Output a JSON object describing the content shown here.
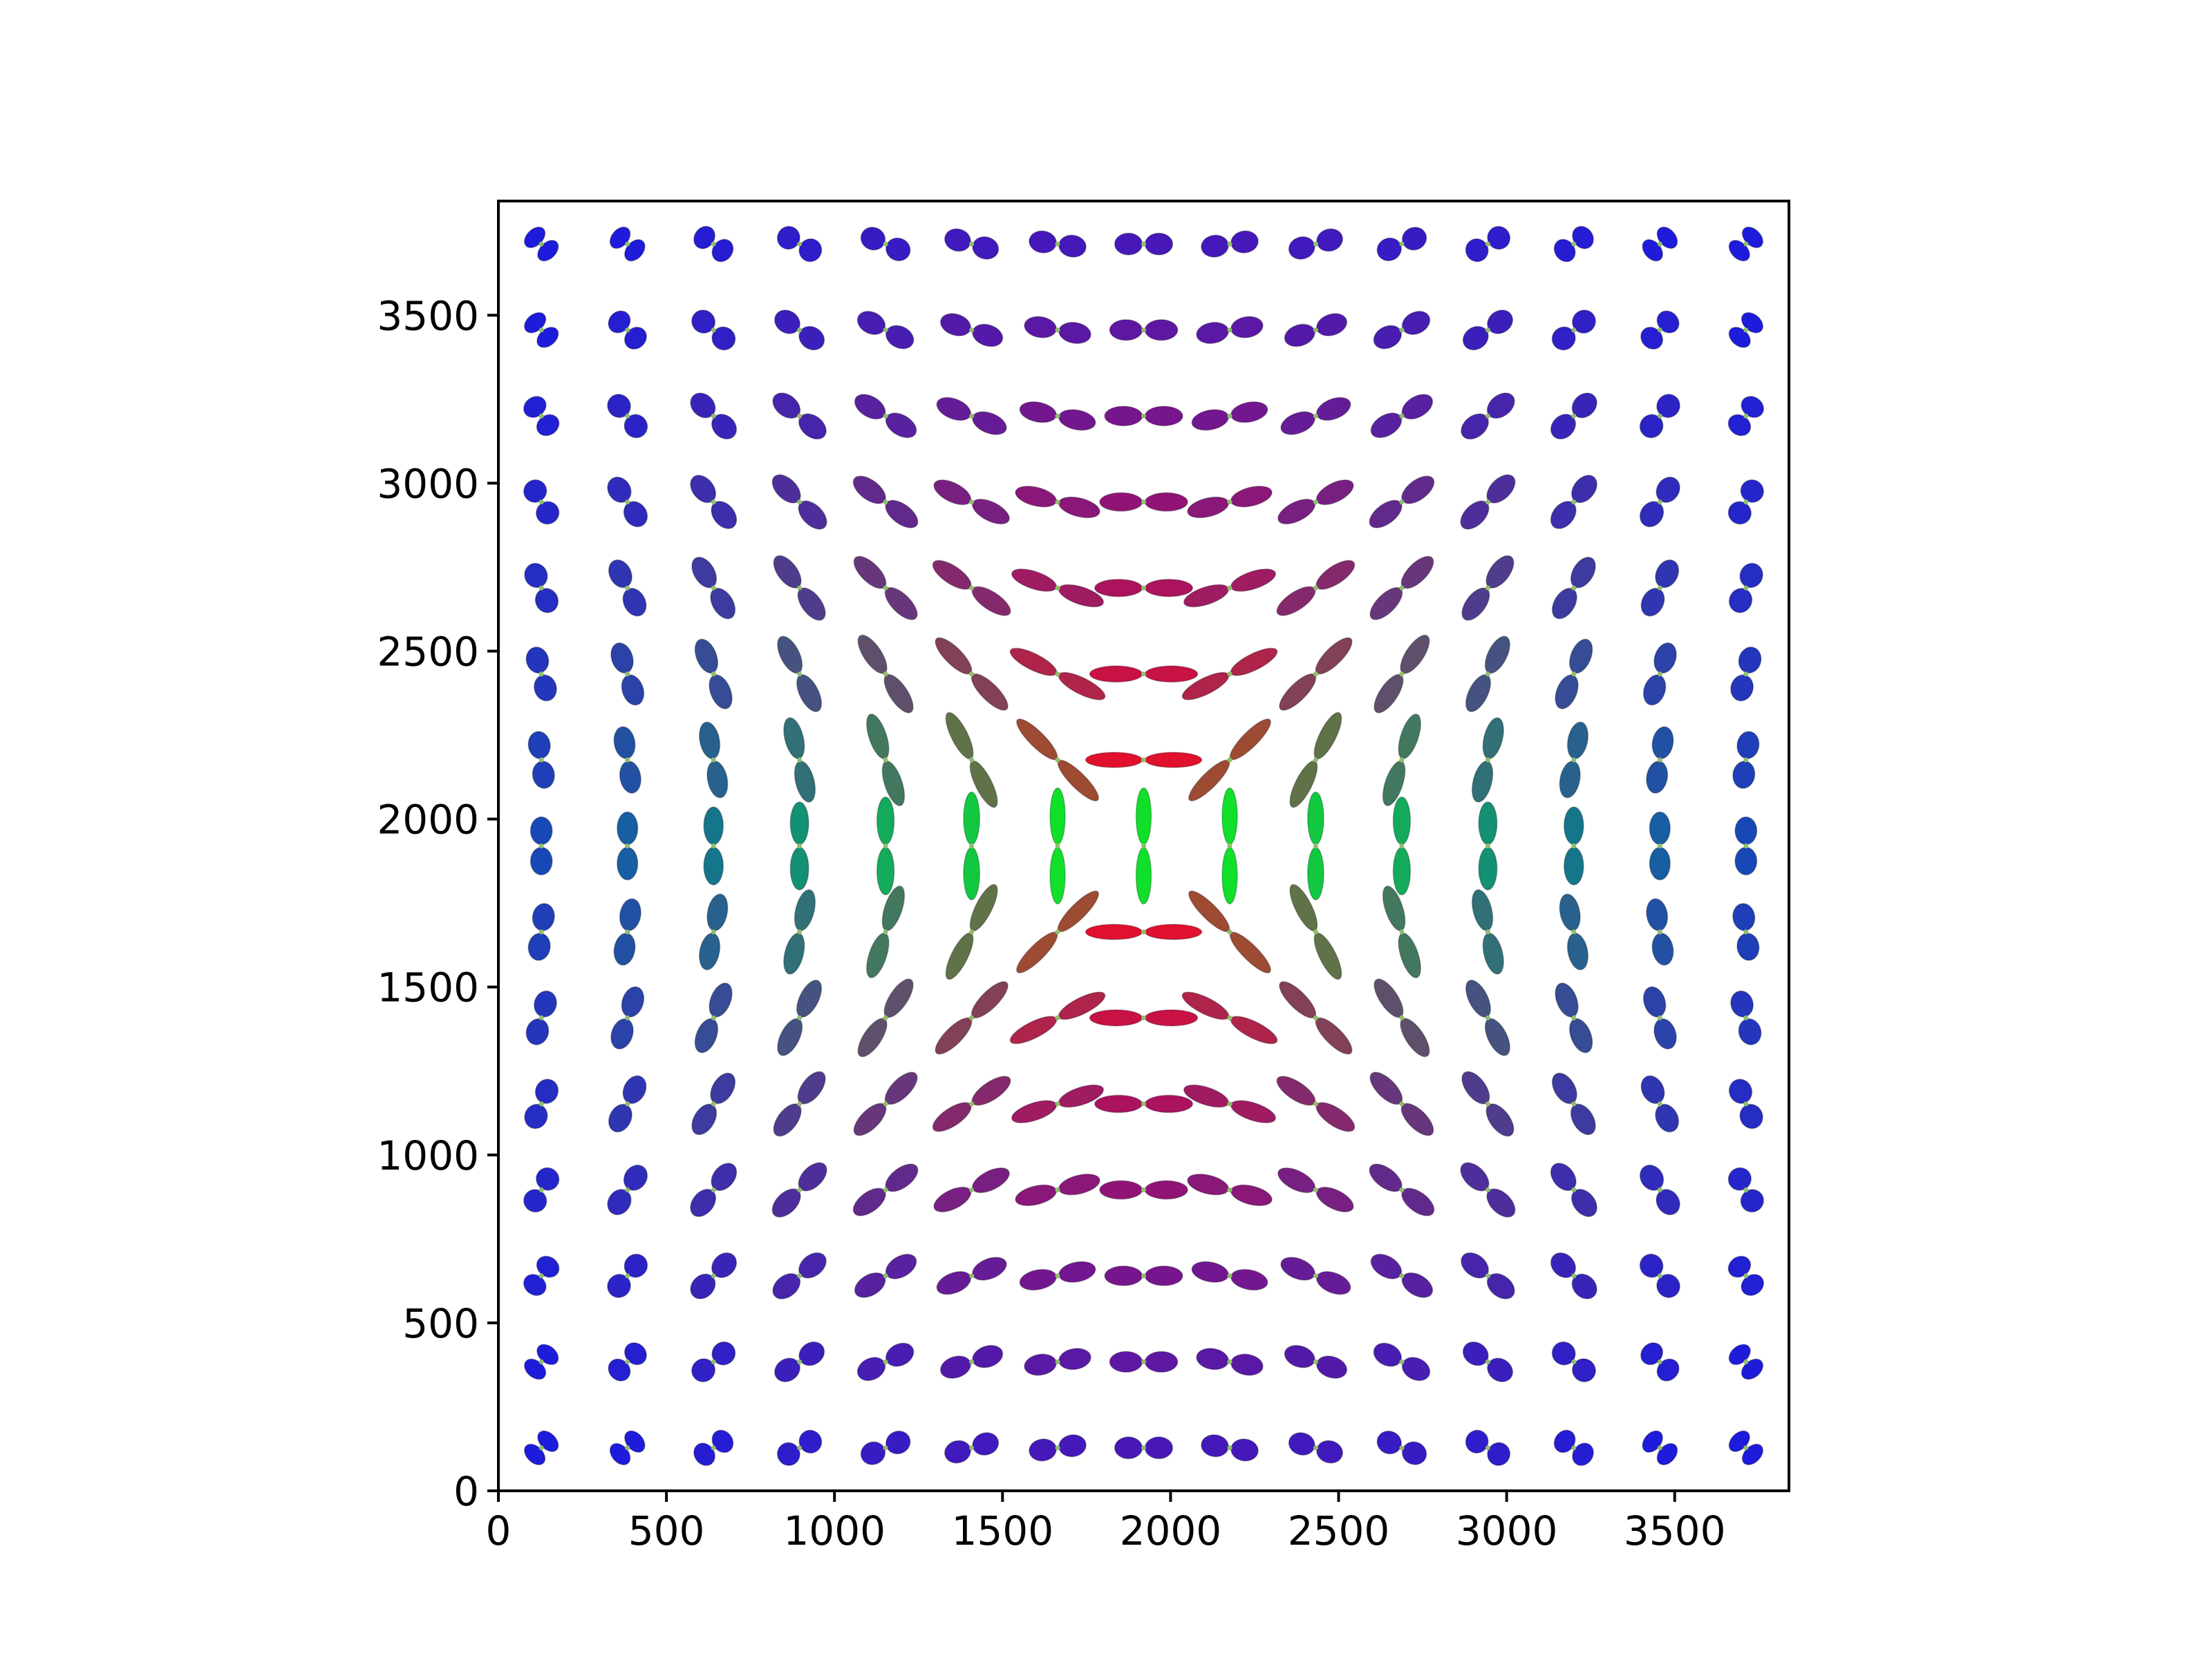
{
  "chart_data": {
    "type": "scatter",
    "title": "",
    "xlabel": "",
    "ylabel": "",
    "xlim": [
      0,
      3840
    ],
    "ylim": [
      3840,
      0
    ],
    "y_inverted": true,
    "grid": false,
    "legend": "none",
    "x_ticks": [
      0,
      500,
      1000,
      1500,
      2000,
      2500,
      3000,
      3500
    ],
    "y_ticks": [
      0,
      500,
      1000,
      1500,
      2000,
      2500,
      3000,
      3500
    ],
    "x_tick_labels": [
      "0",
      "500",
      "1000",
      "1500",
      "2000",
      "2500",
      "3000",
      "3500"
    ],
    "y_tick_labels": [
      "0",
      "500",
      "1000",
      "1500",
      "2000",
      "2500",
      "3000",
      "3500"
    ],
    "glyph_grid": {
      "x_centers": [
        128,
        384,
        640,
        896,
        1152,
        1408,
        1664,
        1920,
        2176,
        2432,
        2688,
        2944,
        3200,
        3456,
        3712
      ],
      "y_centers": [
        128,
        384,
        640,
        896,
        1152,
        1408,
        1664,
        1920,
        2176,
        2432,
        2688,
        2944,
        3200,
        3456,
        3712
      ],
      "glyph_shape": "bilobed orientation glyph",
      "orientation_pattern": "concentric rings around the image center",
      "center": [
        1920,
        1920
      ]
    },
    "colors": {
      "horizontal": "#e0102e",
      "vertical": "#10e02a",
      "out_of_plane": "#1a1ae0"
    }
  }
}
